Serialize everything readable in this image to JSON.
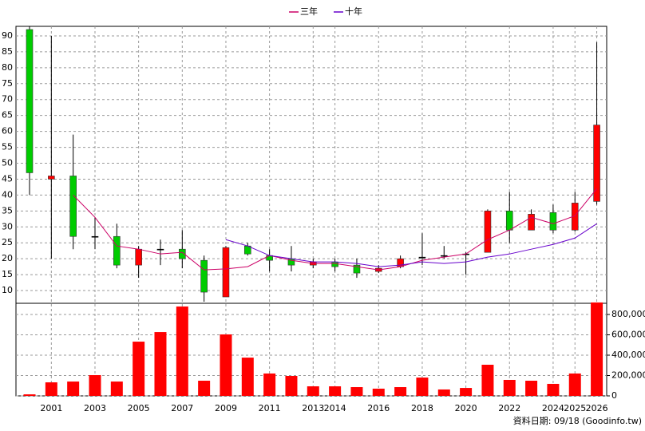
{
  "chart_data": [
    {
      "type": "candlestick",
      "categories": [
        null,
        "2001",
        null,
        "2003",
        null,
        "2005",
        null,
        "2007",
        null,
        "2009",
        null,
        "2011",
        null,
        "2013",
        "2014",
        null,
        "2016",
        null,
        "2018",
        null,
        "2020",
        null,
        "2022",
        null,
        "2024",
        "2025",
        "2026"
      ],
      "open": [
        92,
        45,
        46,
        27,
        27,
        18,
        23,
        23,
        19.5,
        8,
        24,
        21,
        20,
        18,
        19,
        18,
        16,
        17.5,
        20.5,
        21,
        21.5,
        22,
        35,
        29,
        34.5,
        29,
        38
      ],
      "high": [
        93,
        90,
        59,
        33,
        31,
        24,
        26,
        29,
        21,
        24,
        25,
        23,
        24,
        20,
        20,
        20,
        18,
        21,
        28,
        24,
        22,
        35.5,
        41,
        35.5,
        37,
        41,
        88
      ],
      "low": [
        40,
        20,
        23,
        23,
        17,
        14,
        18,
        17,
        6.5,
        8,
        21,
        16,
        16,
        17,
        16,
        14,
        15.5,
        17,
        18,
        20,
        15,
        22,
        25,
        29,
        28,
        28.5,
        37
      ],
      "close": [
        47,
        46,
        27,
        27,
        18,
        23,
        23,
        20,
        9.5,
        23.5,
        21.5,
        19.5,
        18,
        19,
        17.5,
        15.5,
        17,
        20,
        20.5,
        21,
        21.5,
        35,
        29,
        34,
        29,
        37.5,
        62
      ],
      "up_color": "#ff0000",
      "down_color": "#00cc00",
      "series": [
        {
          "name": "三年",
          "color": "#cc0066",
          "values": [
            null,
            null,
            40,
            33,
            24,
            23,
            21.5,
            22,
            16.5,
            16.8,
            17.5,
            21,
            19.5,
            18.5,
            18.5,
            17.5,
            16.5,
            17.5,
            19.5,
            20.5,
            21.5,
            26,
            29,
            33,
            31,
            33.5,
            42
          ]
        },
        {
          "name": "十年",
          "color": "#6600cc",
          "values": [
            null,
            null,
            null,
            null,
            null,
            null,
            null,
            null,
            null,
            26,
            24,
            21,
            20,
            19,
            19,
            18.5,
            17.5,
            18,
            19,
            18.5,
            19,
            20.5,
            21.5,
            23,
            24.5,
            26.5,
            31
          ]
        }
      ],
      "ylim": [
        6,
        93
      ],
      "yticks": [
        10,
        15,
        20,
        25,
        30,
        35,
        40,
        45,
        50,
        55,
        60,
        65,
        70,
        75,
        80,
        85,
        90
      ],
      "grid": true
    },
    {
      "type": "bar",
      "values": [
        15000,
        133000,
        141000,
        204000,
        141000,
        533000,
        627000,
        878000,
        149000,
        604000,
        376000,
        220000,
        196000,
        94000,
        94000,
        86000,
        71000,
        86000,
        180000,
        63000,
        78000,
        306000,
        157000,
        149000,
        118000,
        220000,
        918000
      ],
      "color": "#ff0000",
      "ylim": [
        0,
        940000
      ],
      "yticks": [
        0,
        {
          "value": 200000,
          "label": "200,000"
        },
        {
          "value": 400000,
          "label": "400,000"
        },
        {
          "value": 600000,
          "label": "600,000"
        },
        {
          "value": 800000,
          "label": "800,000"
        }
      ],
      "grid": true
    }
  ],
  "footer": "資料日期: 09/18 (Goodinfo.tw)"
}
